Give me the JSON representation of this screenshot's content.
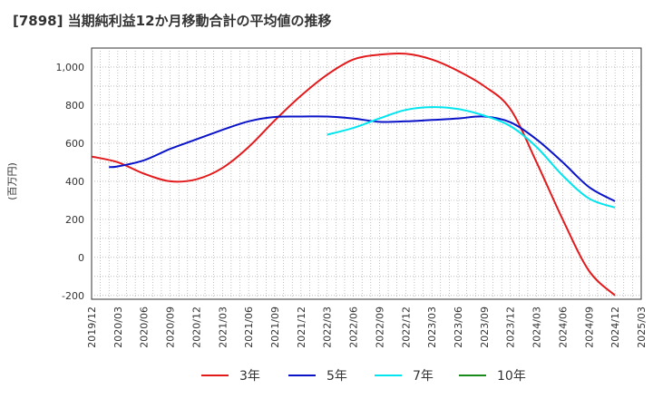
{
  "title": "[7898]  当期純利益12か月移動合計の平均値の推移",
  "chart_data": {
    "type": "line",
    "title": "[7898]  当期純利益12か月移動合計の平均値の推移",
    "ylabel": "(百万円)",
    "xlabel": "",
    "ylim": [
      -220,
      1100
    ],
    "yticks": [
      -200,
      0,
      200,
      400,
      600,
      800,
      1000
    ],
    "ytick_labels": [
      "-200",
      "0",
      "200",
      "400",
      "600",
      "800",
      "1,000"
    ],
    "xticks": [
      "2019/12",
      "2020/03",
      "2020/06",
      "2020/09",
      "2020/12",
      "2021/03",
      "2021/06",
      "2021/09",
      "2021/12",
      "2022/03",
      "2022/06",
      "2022/09",
      "2022/12",
      "2023/03",
      "2023/06",
      "2023/09",
      "2023/12",
      "2024/03",
      "2024/06",
      "2024/09",
      "2024/12",
      "2025/03"
    ],
    "grid": true,
    "legend_position": "bottom",
    "series": [
      {
        "name": "3年",
        "color": "#e31a1c",
        "x": [
          "2019/12",
          "2020/03",
          "2020/06",
          "2020/09",
          "2020/12",
          "2021/03",
          "2021/06",
          "2021/09",
          "2021/12",
          "2022/03",
          "2022/06",
          "2022/09",
          "2022/12",
          "2023/03",
          "2023/06",
          "2023/09",
          "2023/12",
          "2024/03",
          "2024/06",
          "2024/09",
          "2024/12"
        ],
        "values": [
          530,
          500,
          440,
          400,
          410,
          470,
          580,
          720,
          850,
          960,
          1040,
          1065,
          1070,
          1040,
          980,
          900,
          780,
          500,
          200,
          -70,
          -200
        ]
      },
      {
        "name": "5年",
        "color": "#0a13c8",
        "x": [
          "2020/02",
          "2020/03",
          "2020/06",
          "2020/09",
          "2020/12",
          "2021/03",
          "2021/06",
          "2021/09",
          "2021/12",
          "2022/03",
          "2022/06",
          "2022/09",
          "2022/12",
          "2023/03",
          "2023/06",
          "2023/09",
          "2023/12",
          "2024/03",
          "2024/06",
          "2024/09",
          "2024/12"
        ],
        "values": [
          475,
          478,
          510,
          570,
          620,
          670,
          715,
          738,
          740,
          740,
          730,
          712,
          715,
          722,
          730,
          740,
          710,
          620,
          500,
          370,
          295
        ]
      },
      {
        "name": "7年",
        "color": "#00e5ee",
        "x": [
          "2022/03",
          "2022/06",
          "2022/09",
          "2022/12",
          "2023/03",
          "2023/06",
          "2023/09",
          "2023/12",
          "2024/03",
          "2024/06",
          "2024/09",
          "2024/12"
        ],
        "values": [
          645,
          680,
          730,
          775,
          790,
          780,
          745,
          690,
          580,
          430,
          310,
          262
        ]
      },
      {
        "name": "10年",
        "color": "#1a8a1a",
        "x": [],
        "values": []
      }
    ]
  }
}
